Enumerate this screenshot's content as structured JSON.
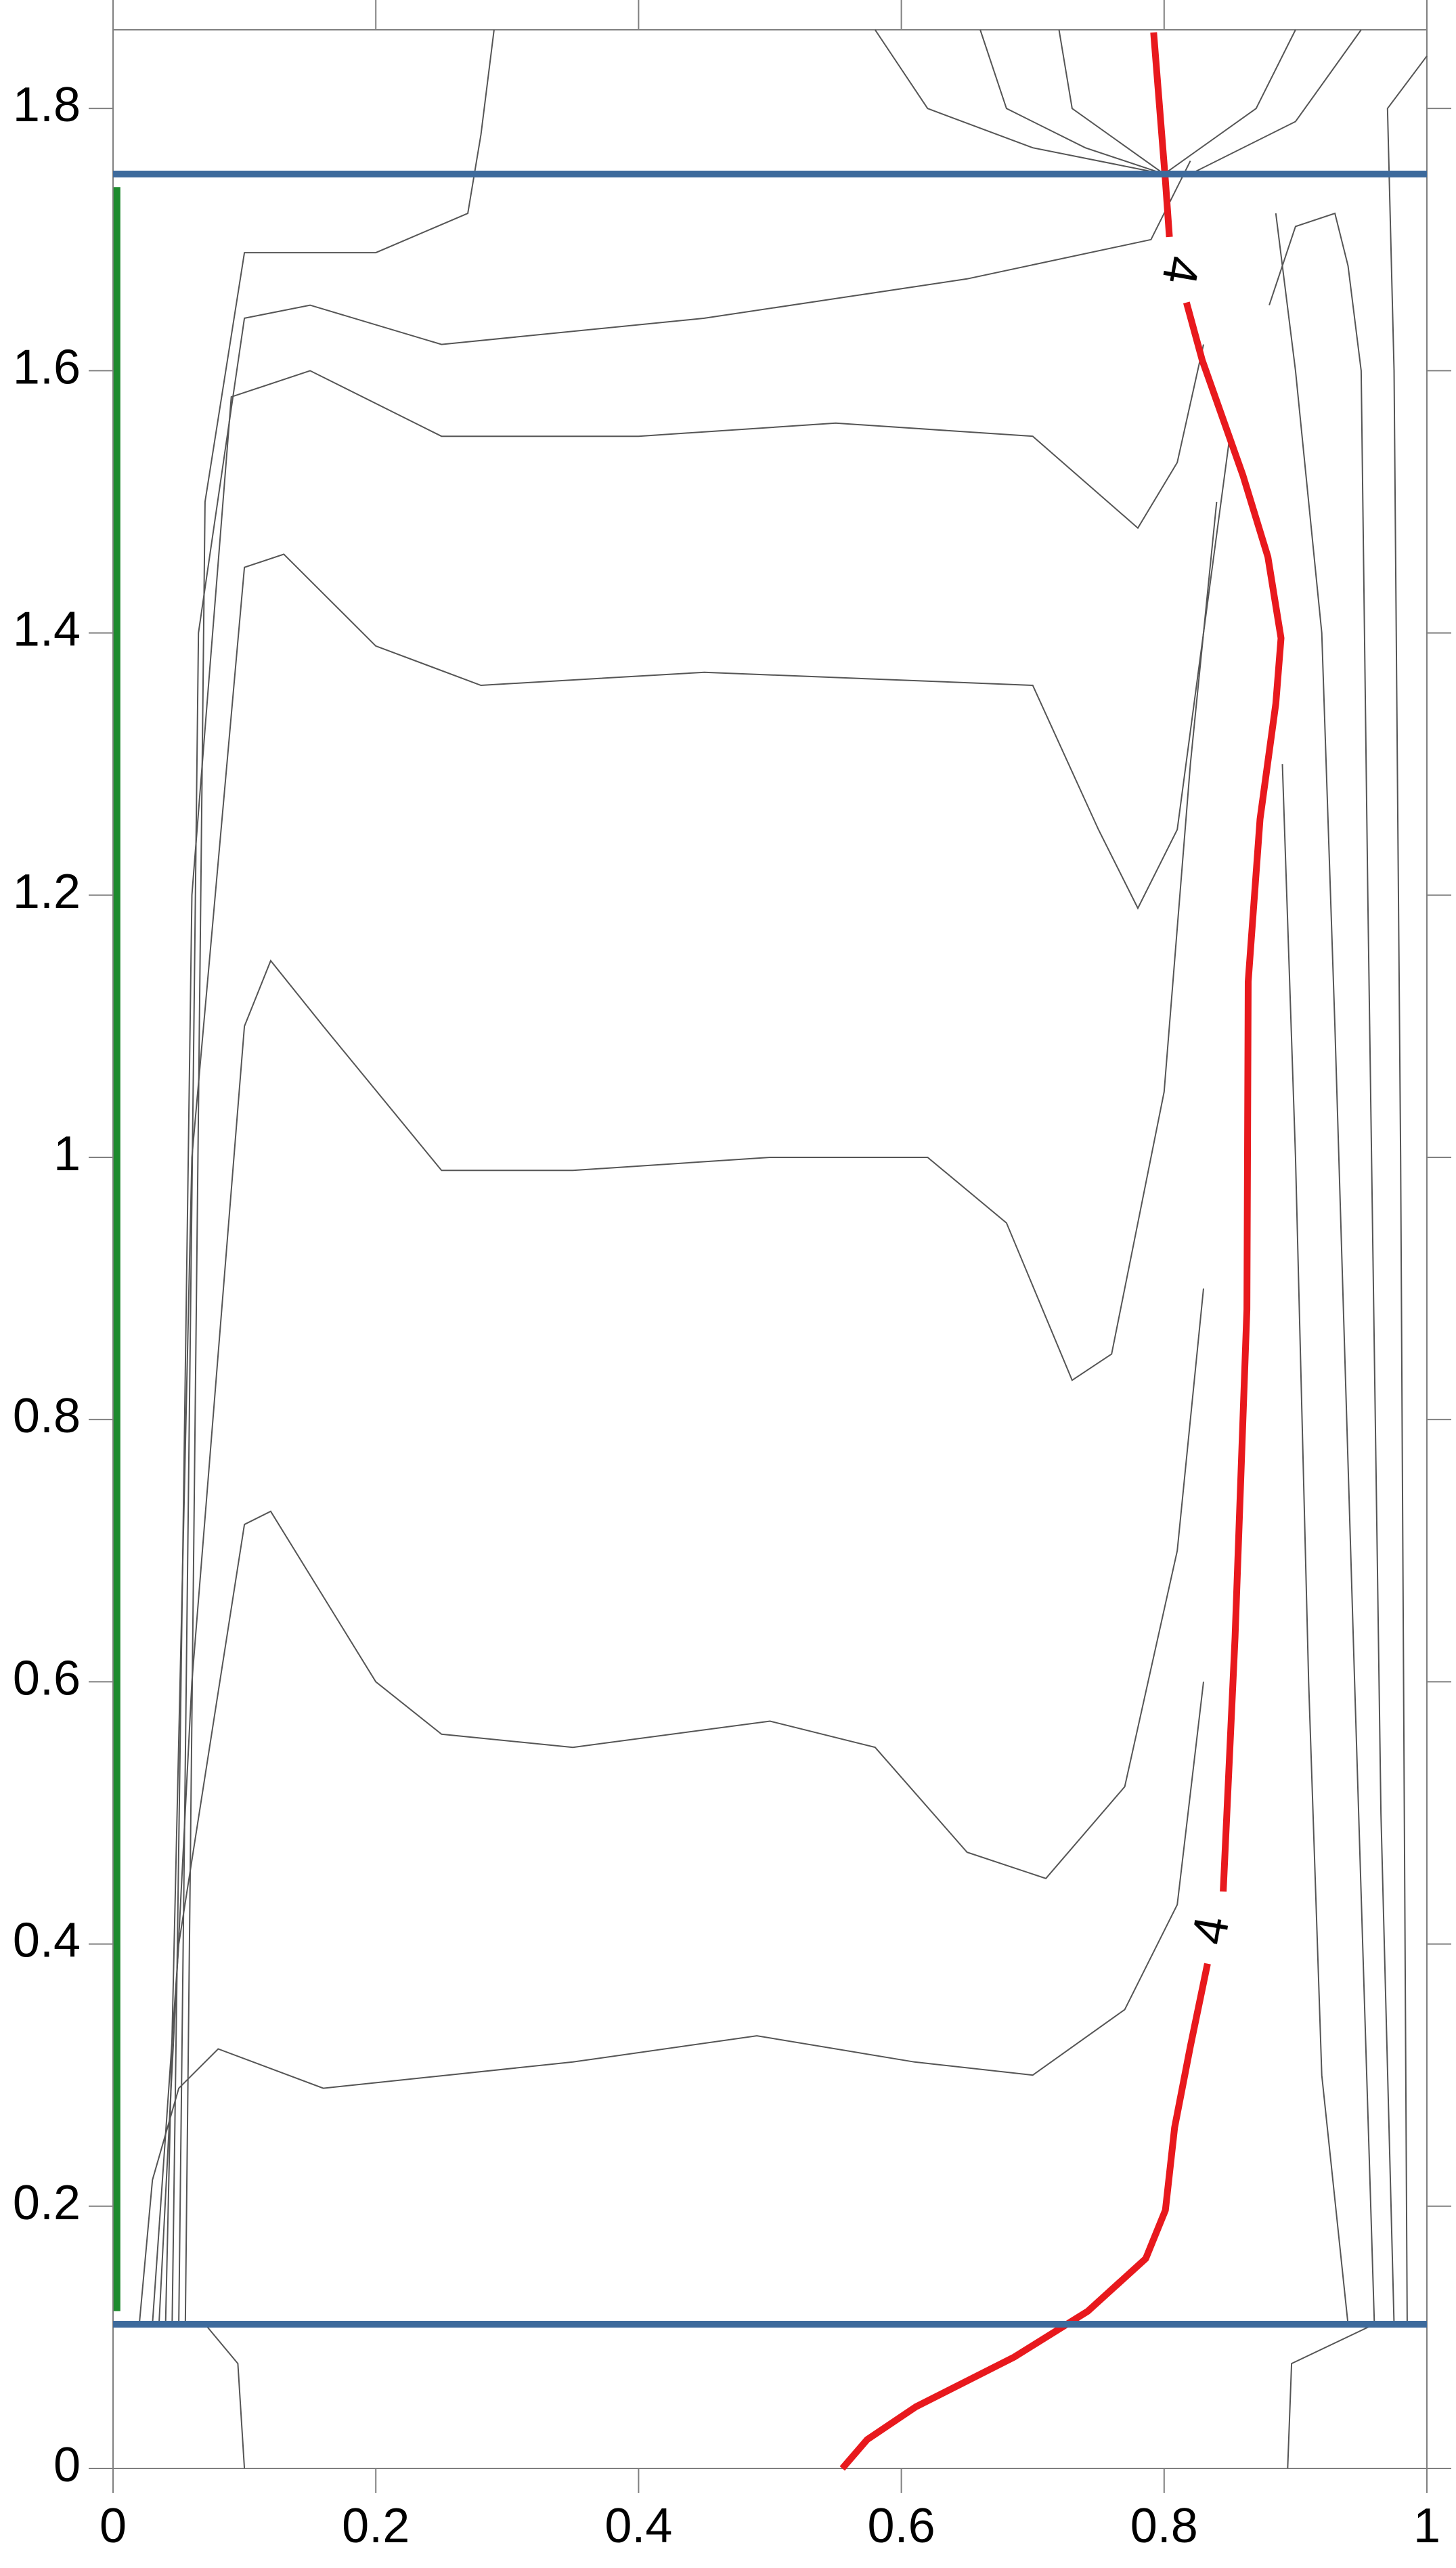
{
  "chart_data": {
    "type": "contour",
    "xlim": [
      0,
      1.0
    ],
    "ylim": [
      0,
      1.86
    ],
    "xticks": [
      0,
      0.2,
      0.4,
      0.6,
      0.8,
      1
    ],
    "yticks": [
      0,
      0.2,
      0.4,
      0.6,
      0.8,
      1,
      1.2,
      1.4,
      1.6,
      1.8
    ],
    "highlight": {
      "level": 4,
      "color": "#e8191d",
      "x": [
        0.555,
        0.574,
        0.611,
        0.686,
        0.742,
        0.786,
        0.801,
        0.808,
        0.82,
        0.833,
        null,
        0.845,
        0.854,
        0.863,
        0.864,
        0.873,
        0.885,
        0.889,
        0.879,
        0.86,
        0.829,
        0.817,
        null,
        0.804,
        0.801,
        0.792
      ],
      "y": [
        0,
        0.022,
        0.047,
        0.085,
        0.12,
        0.16,
        0.197,
        0.26,
        0.322,
        0.385,
        null,
        0.44,
        0.634,
        0.884,
        1.134,
        1.258,
        1.346,
        1.396,
        1.458,
        1.52,
        1.608,
        1.652,
        null,
        1.702,
        1.745,
        1.858
      ],
      "labels": [
        {
          "text": "4",
          "x": 0.838,
          "y": 0.41
        },
        {
          "text": "4",
          "x": 0.81,
          "y": 1.677
        }
      ]
    },
    "contours": [
      {
        "x": [
          0.02,
          0.03,
          0.05,
          0.08,
          0.16,
          0.35,
          0.49,
          0.61,
          0.7,
          0.77,
          0.81,
          0.83
        ],
        "y": [
          0.11,
          0.22,
          0.29,
          0.32,
          0.29,
          0.31,
          0.33,
          0.31,
          0.3,
          0.35,
          0.43,
          0.6
        ]
      },
      {
        "x": [
          0.03,
          0.05,
          0.1,
          0.12,
          0.2,
          0.25,
          0.35,
          0.5,
          0.58,
          0.65,
          0.71,
          0.77,
          0.81,
          0.83
        ],
        "y": [
          0.11,
          0.4,
          0.72,
          0.73,
          0.6,
          0.56,
          0.55,
          0.57,
          0.55,
          0.47,
          0.45,
          0.52,
          0.7,
          0.9
        ]
      },
      {
        "x": [
          0.035,
          0.06,
          0.1,
          0.12,
          0.16,
          0.25,
          0.35,
          0.5,
          0.62,
          0.68,
          0.73,
          0.76,
          0.8,
          0.82,
          0.84
        ],
        "y": [
          0.11,
          0.6,
          1.1,
          1.15,
          1.1,
          0.99,
          0.99,
          1.0,
          1.0,
          0.95,
          0.83,
          0.85,
          1.05,
          1.3,
          1.5
        ]
      },
      {
        "x": [
          0.04,
          0.06,
          0.1,
          0.13,
          0.2,
          0.28,
          0.45,
          0.7,
          0.75,
          0.78,
          0.81,
          0.83,
          0.85
        ],
        "y": [
          0.11,
          1.0,
          1.45,
          1.46,
          1.39,
          1.36,
          1.37,
          1.36,
          1.25,
          1.19,
          1.25,
          1.4,
          1.55
        ]
      },
      {
        "x": [
          0.045,
          0.06,
          0.09,
          0.15,
          0.25,
          0.4,
          0.55,
          0.7,
          0.78,
          0.81,
          0.83
        ],
        "y": [
          0.11,
          1.2,
          1.58,
          1.6,
          1.55,
          1.55,
          1.56,
          1.55,
          1.48,
          1.53,
          1.62
        ]
      },
      {
        "x": [
          0.05,
          0.065,
          0.1,
          0.15,
          0.25,
          0.45,
          0.65,
          0.79,
          0.82
        ],
        "y": [
          0.11,
          1.4,
          1.64,
          1.65,
          1.62,
          1.64,
          1.67,
          1.7,
          1.76
        ]
      },
      {
        "x": [
          0.055,
          0.07,
          0.1,
          0.2,
          0.27,
          0.28,
          0.29
        ],
        "y": [
          0.11,
          1.5,
          1.69,
          1.69,
          1.72,
          1.78,
          1.86
        ]
      },
      {
        "x": [
          0.985,
          0.98,
          0.975,
          0.97,
          1.0
        ],
        "y": [
          0.11,
          1.0,
          1.6,
          1.8,
          1.84
        ]
      },
      {
        "x": [
          0.975,
          0.965,
          0.955,
          0.95,
          0.94,
          0.93,
          0.9,
          0.88
        ],
        "y": [
          0.11,
          0.5,
          1.2,
          1.6,
          1.68,
          1.72,
          1.71,
          1.65
        ]
      },
      {
        "x": [
          0.96,
          0.945,
          0.93,
          0.92,
          0.9,
          0.885
        ],
        "y": [
          0.11,
          0.6,
          1.1,
          1.4,
          1.6,
          1.72
        ]
      },
      {
        "x": [
          0.94,
          0.92,
          0.91,
          0.9,
          0.89
        ],
        "y": [
          0.11,
          0.3,
          0.6,
          1.0,
          1.3
        ]
      },
      {
        "x": [
          0.1,
          0.095,
          0.07
        ],
        "y": [
          0,
          0.08,
          0.11
        ]
      },
      {
        "x": [
          0.894,
          0.897,
          0.96
        ],
        "y": [
          0,
          0.08,
          0.11
        ]
      },
      {
        "x": [
          0.58,
          0.62,
          0.7,
          0.8
        ],
        "y": [
          1.86,
          1.8,
          1.77,
          1.75
        ]
      },
      {
        "x": [
          0.66,
          0.68,
          0.74,
          0.8
        ],
        "y": [
          1.86,
          1.8,
          1.77,
          1.75
        ]
      },
      {
        "x": [
          0.72,
          0.73,
          0.8
        ],
        "y": [
          1.86,
          1.8,
          1.75
        ]
      },
      {
        "x": [
          0.9,
          0.87,
          0.8
        ],
        "y": [
          1.86,
          1.8,
          1.75
        ]
      },
      {
        "x": [
          0.95,
          0.9,
          0.82
        ],
        "y": [
          1.86,
          1.79,
          1.75
        ]
      }
    ],
    "lines": [
      {
        "color": "#3d6a9c",
        "x": [
          0,
          1
        ],
        "y": [
          0.11,
          0.11
        ]
      },
      {
        "color": "#3d6a9c",
        "x": [
          0,
          1
        ],
        "y": [
          1.75,
          1.75
        ]
      },
      {
        "color": "#1e8a2e",
        "x": [
          0.003,
          0.003
        ],
        "y": [
          0.12,
          1.74
        ]
      }
    ]
  }
}
